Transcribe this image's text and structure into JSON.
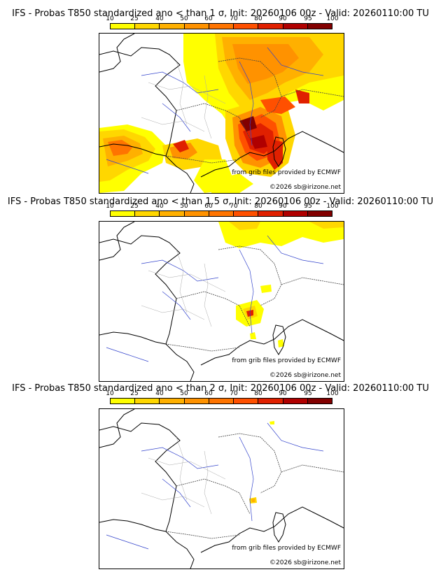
{
  "colors": {
    "scale": [
      "#ffff00",
      "#ffd700",
      "#ffb000",
      "#ff9200",
      "#ff7400",
      "#ff5000",
      "#e02000",
      "#b00000",
      "#820000",
      "#5a0000"
    ]
  },
  "legend_ticks": [
    "10",
    "25",
    "40",
    "50",
    "60",
    "70",
    "80",
    "90",
    "95",
    "100"
  ],
  "panels": [
    {
      "title": "IFS - Probas T850  standardized ano < than 1 σ, Init: 20260106 00z - Valid: 20260110:00 TU",
      "threshold_sigma": 1,
      "source_text": "from grib files provided by ECMWF",
      "copyright_text": "©2026 sb@irizone.net"
    },
    {
      "title": "IFS - Probas T850  standardized ano < than 1.5 σ, Init: 20260106 00z - Valid: 20260110:00 TU",
      "threshold_sigma": 1.5,
      "source_text": "from grib files provided by ECMWF",
      "copyright_text": "©2026 sb@irizone.net"
    },
    {
      "title": "IFS - Probas T850  standardized ano < than 2 σ, Init: 20260106 00z - Valid: 20260110:00 TU",
      "threshold_sigma": 2,
      "source_text": "from grib files provided by ECMWF",
      "copyright_text": "©2026 sb@irizone.net"
    }
  ]
}
